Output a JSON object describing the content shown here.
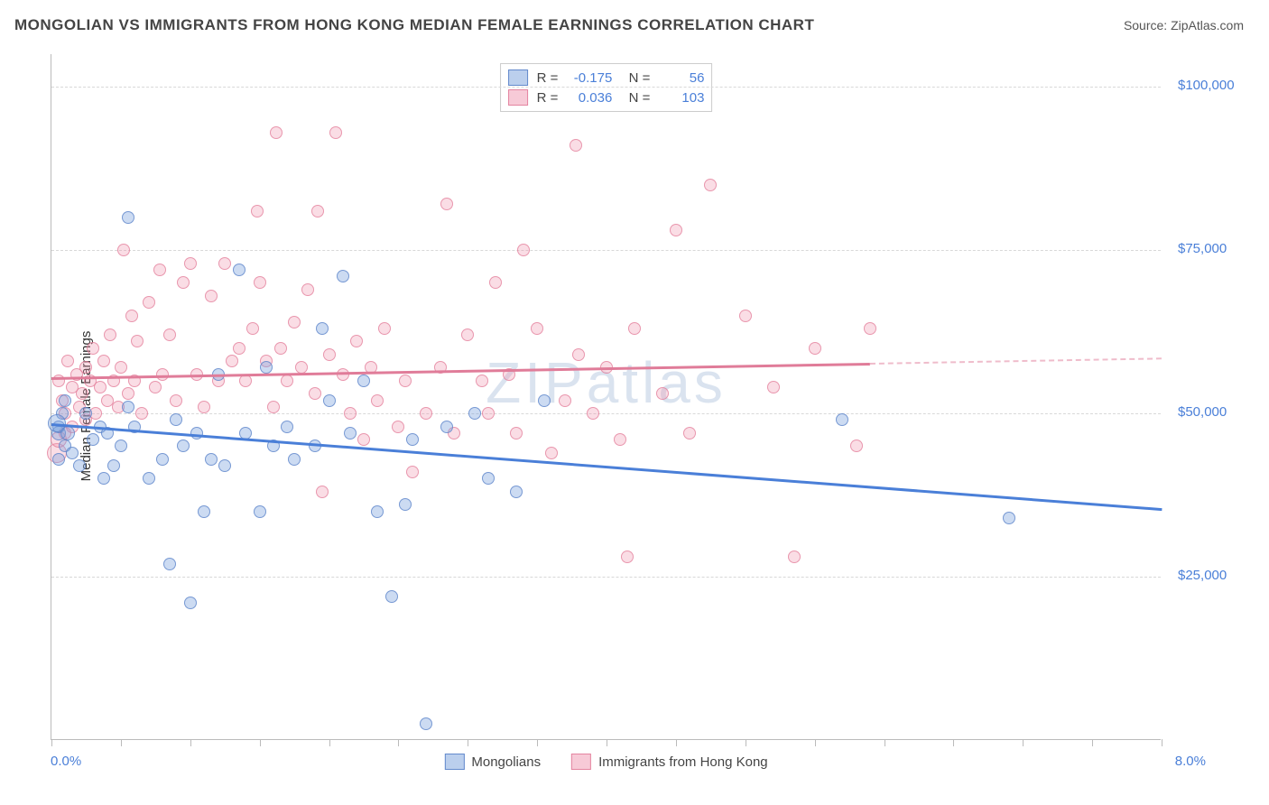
{
  "header": {
    "title": "MONGOLIAN VS IMMIGRANTS FROM HONG KONG MEDIAN FEMALE EARNINGS CORRELATION CHART",
    "source": "Source: ZipAtlas.com"
  },
  "chart": {
    "type": "scatter",
    "watermark": "ZIPatlas",
    "ylabel": "Median Female Earnings",
    "xlim": [
      0,
      8
    ],
    "ylim": [
      0,
      105000
    ],
    "xtick_min_label": "0.0%",
    "xtick_max_label": "8.0%",
    "y_ticks": [
      25000,
      50000,
      75000,
      100000
    ],
    "y_tick_labels": [
      "$25,000",
      "$50,000",
      "$75,000",
      "$100,000"
    ],
    "x_minor_ticks": [
      0,
      0.5,
      1,
      1.5,
      2,
      2.5,
      3,
      3.5,
      4,
      4.5,
      5,
      5.5,
      6,
      6.5,
      7,
      7.5,
      8
    ],
    "colors": {
      "blue_fill": "#8fb3e0",
      "blue_stroke": "#5f86c9",
      "pink_fill": "#f3a3b6",
      "pink_stroke": "#e07c99",
      "axis_text": "#4a7fd8",
      "grid": "#d8d8d8"
    },
    "legend_stats": [
      {
        "series": "blue",
        "r": "-0.175",
        "n": "56"
      },
      {
        "series": "pink",
        "r": "0.036",
        "n": "103"
      }
    ],
    "bottom_legend": [
      {
        "series": "blue",
        "label": "Mongolians"
      },
      {
        "series": "pink",
        "label": "Immigrants from Hong Kong"
      }
    ],
    "trend": {
      "blue": {
        "y_at_x0": 48500,
        "y_at_x8": 35500,
        "solid_until_x": 8.0,
        "color": "#4a7fd8"
      },
      "pink": {
        "y_at_x0": 55500,
        "y_at_x8": 58500,
        "solid_until_x": 5.9,
        "color": "#e07c99"
      }
    },
    "points_blue": [
      [
        0.05,
        47000,
        16
      ],
      [
        0.05,
        48000,
        14
      ],
      [
        0.05,
        43000,
        14
      ],
      [
        0.08,
        50000,
        14
      ],
      [
        0.1,
        52000,
        14
      ],
      [
        0.1,
        45000,
        14
      ],
      [
        0.12,
        47000,
        16
      ],
      [
        0.15,
        44000,
        14
      ],
      [
        0.2,
        42000,
        14
      ],
      [
        0.25,
        50000,
        14
      ],
      [
        0.3,
        46000,
        14
      ],
      [
        0.35,
        48000,
        14
      ],
      [
        0.38,
        40000,
        14
      ],
      [
        0.4,
        47000,
        14
      ],
      [
        0.45,
        42000,
        14
      ],
      [
        0.5,
        45000,
        14
      ],
      [
        0.55,
        80000,
        14
      ],
      [
        0.55,
        51000,
        14
      ],
      [
        0.6,
        48000,
        14
      ],
      [
        0.7,
        40000,
        14
      ],
      [
        0.8,
        43000,
        14
      ],
      [
        0.85,
        27000,
        14
      ],
      [
        0.9,
        49000,
        14
      ],
      [
        0.95,
        45000,
        14
      ],
      [
        1.0,
        21000,
        14
      ],
      [
        1.05,
        47000,
        14
      ],
      [
        1.1,
        35000,
        14
      ],
      [
        1.15,
        43000,
        14
      ],
      [
        1.2,
        56000,
        14
      ],
      [
        1.25,
        42000,
        14
      ],
      [
        1.35,
        72000,
        14
      ],
      [
        1.4,
        47000,
        14
      ],
      [
        1.5,
        35000,
        14
      ],
      [
        1.55,
        57000,
        14
      ],
      [
        1.6,
        45000,
        14
      ],
      [
        1.7,
        48000,
        14
      ],
      [
        1.75,
        43000,
        14
      ],
      [
        1.9,
        45000,
        14
      ],
      [
        1.95,
        63000,
        14
      ],
      [
        2.0,
        52000,
        14
      ],
      [
        2.1,
        71000,
        14
      ],
      [
        2.15,
        47000,
        14
      ],
      [
        2.25,
        55000,
        14
      ],
      [
        2.35,
        35000,
        14
      ],
      [
        2.45,
        22000,
        14
      ],
      [
        2.55,
        36000,
        14
      ],
      [
        2.6,
        46000,
        14
      ],
      [
        2.7,
        2500,
        14
      ],
      [
        2.85,
        48000,
        14
      ],
      [
        3.05,
        50000,
        14
      ],
      [
        3.15,
        40000,
        14
      ],
      [
        3.35,
        38000,
        14
      ],
      [
        3.55,
        52000,
        14
      ],
      [
        5.7,
        49000,
        14
      ],
      [
        6.9,
        34000,
        14
      ],
      [
        0.04,
        48500,
        20
      ]
    ],
    "points_pink": [
      [
        0.04,
        44000,
        22
      ],
      [
        0.05,
        46000,
        18
      ],
      [
        0.05,
        55000,
        14
      ],
      [
        0.08,
        52000,
        14
      ],
      [
        0.1,
        50000,
        14
      ],
      [
        0.1,
        47000,
        14
      ],
      [
        0.12,
        58000,
        14
      ],
      [
        0.15,
        54000,
        14
      ],
      [
        0.15,
        48000,
        14
      ],
      [
        0.18,
        56000,
        14
      ],
      [
        0.2,
        51000,
        14
      ],
      [
        0.22,
        53000,
        14
      ],
      [
        0.25,
        57000,
        14
      ],
      [
        0.25,
        49000,
        14
      ],
      [
        0.28,
        55000,
        14
      ],
      [
        0.3,
        60000,
        14
      ],
      [
        0.32,
        50000,
        14
      ],
      [
        0.35,
        54000,
        14
      ],
      [
        0.38,
        58000,
        14
      ],
      [
        0.4,
        52000,
        14
      ],
      [
        0.42,
        62000,
        14
      ],
      [
        0.45,
        55000,
        14
      ],
      [
        0.48,
        51000,
        14
      ],
      [
        0.5,
        57000,
        14
      ],
      [
        0.52,
        75000,
        14
      ],
      [
        0.55,
        53000,
        14
      ],
      [
        0.58,
        65000,
        14
      ],
      [
        0.6,
        55000,
        14
      ],
      [
        0.62,
        61000,
        14
      ],
      [
        0.65,
        50000,
        14
      ],
      [
        0.7,
        67000,
        14
      ],
      [
        0.75,
        54000,
        14
      ],
      [
        0.78,
        72000,
        14
      ],
      [
        0.8,
        56000,
        14
      ],
      [
        0.85,
        62000,
        14
      ],
      [
        0.9,
        52000,
        14
      ],
      [
        0.95,
        70000,
        14
      ],
      [
        1.0,
        73000,
        14
      ],
      [
        1.05,
        56000,
        14
      ],
      [
        1.1,
        51000,
        14
      ],
      [
        1.15,
        68000,
        14
      ],
      [
        1.2,
        55000,
        14
      ],
      [
        1.25,
        73000,
        14
      ],
      [
        1.3,
        58000,
        14
      ],
      [
        1.35,
        60000,
        14
      ],
      [
        1.4,
        55000,
        14
      ],
      [
        1.45,
        63000,
        14
      ],
      [
        1.48,
        81000,
        14
      ],
      [
        1.5,
        70000,
        14
      ],
      [
        1.55,
        58000,
        14
      ],
      [
        1.6,
        51000,
        14
      ],
      [
        1.62,
        93000,
        14
      ],
      [
        1.65,
        60000,
        14
      ],
      [
        1.7,
        55000,
        14
      ],
      [
        1.75,
        64000,
        14
      ],
      [
        1.8,
        57000,
        14
      ],
      [
        1.85,
        69000,
        14
      ],
      [
        1.9,
        53000,
        14
      ],
      [
        1.92,
        81000,
        14
      ],
      [
        1.95,
        38000,
        14
      ],
      [
        2.0,
        59000,
        14
      ],
      [
        2.05,
        93000,
        14
      ],
      [
        2.1,
        56000,
        14
      ],
      [
        2.15,
        50000,
        14
      ],
      [
        2.2,
        61000,
        14
      ],
      [
        2.25,
        46000,
        14
      ],
      [
        2.3,
        57000,
        14
      ],
      [
        2.35,
        52000,
        14
      ],
      [
        2.4,
        63000,
        14
      ],
      [
        2.5,
        48000,
        14
      ],
      [
        2.55,
        55000,
        14
      ],
      [
        2.6,
        41000,
        14
      ],
      [
        2.7,
        50000,
        14
      ],
      [
        2.8,
        57000,
        14
      ],
      [
        2.85,
        82000,
        14
      ],
      [
        2.9,
        47000,
        14
      ],
      [
        3.0,
        62000,
        14
      ],
      [
        3.1,
        55000,
        14
      ],
      [
        3.15,
        50000,
        14
      ],
      [
        3.2,
        70000,
        14
      ],
      [
        3.3,
        56000,
        14
      ],
      [
        3.35,
        47000,
        14
      ],
      [
        3.4,
        75000,
        14
      ],
      [
        3.5,
        63000,
        14
      ],
      [
        3.6,
        44000,
        14
      ],
      [
        3.7,
        52000,
        14
      ],
      [
        3.78,
        91000,
        14
      ],
      [
        3.8,
        59000,
        14
      ],
      [
        3.9,
        50000,
        14
      ],
      [
        4.0,
        57000,
        14
      ],
      [
        4.1,
        46000,
        14
      ],
      [
        4.15,
        28000,
        14
      ],
      [
        4.2,
        63000,
        14
      ],
      [
        4.4,
        53000,
        14
      ],
      [
        4.5,
        78000,
        14
      ],
      [
        4.6,
        47000,
        14
      ],
      [
        4.75,
        85000,
        14
      ],
      [
        5.0,
        65000,
        14
      ],
      [
        5.2,
        54000,
        14
      ],
      [
        5.35,
        28000,
        14
      ],
      [
        5.5,
        60000,
        14
      ],
      [
        5.8,
        45000,
        14
      ],
      [
        5.9,
        63000,
        14
      ]
    ]
  }
}
